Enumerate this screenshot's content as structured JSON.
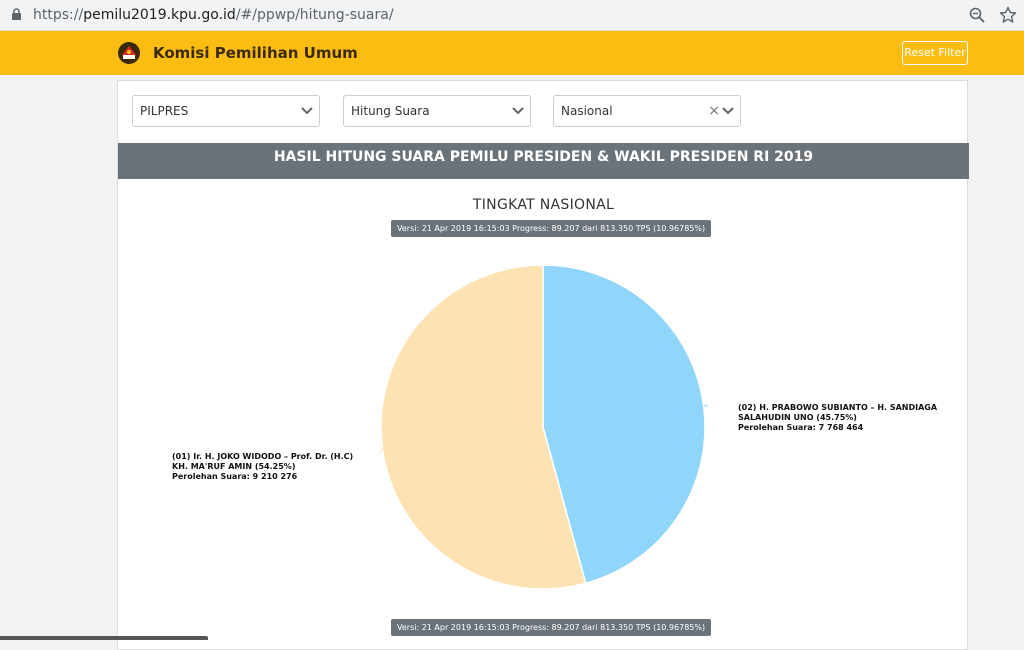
{
  "browser": {
    "url_prefix": "https://",
    "url_host": "pemilu2019.kpu.go.id",
    "url_path": "/#/ppwp/hitung-suara/"
  },
  "header": {
    "brand": "Komisi Pemilihan Umum",
    "reset_label": "Reset Filter",
    "accent": "#fbbd12"
  },
  "filters": {
    "election": "PILPRES",
    "mode": "Hitung Suara",
    "region": "Nasional",
    "region_clear": "×"
  },
  "banner": "HASIL HITUNG SUARA PEMILU PRESIDEN & WAKIL PRESIDEN RI 2019",
  "chart_data": {
    "type": "pie",
    "title": "TINGKAT NASIONAL",
    "subtitle": "Versi: 21 Apr 2019 16:15:03 Progress: 89.207 dari 813.350 TPS (10.96785%)",
    "footer": "Versi: 21 Apr 2019 16:15:03 Progress: 89.207 dari 813.350 TPS (10.96785%)",
    "slices": [
      {
        "label_line1": "(02) H. PRABOWO SUBIANTO – H. SANDIAGA",
        "label_line2": "SALAHUDIN UNO (45.75%)",
        "label_line3": "Perolehan Suara: 7 768 464",
        "value": 7768464,
        "percent": 45.75,
        "color": "#90d5fa"
      },
      {
        "label_line1": "(01) Ir. H. JOKO WIDODO – Prof. Dr. (H.C)",
        "label_line2": "KH. MA'RUF AMIN (54.25%)",
        "label_line3": "Perolehan Suara: 9 210 276",
        "value": 9210276,
        "percent": 54.25,
        "color": "#fde3b4"
      }
    ]
  }
}
